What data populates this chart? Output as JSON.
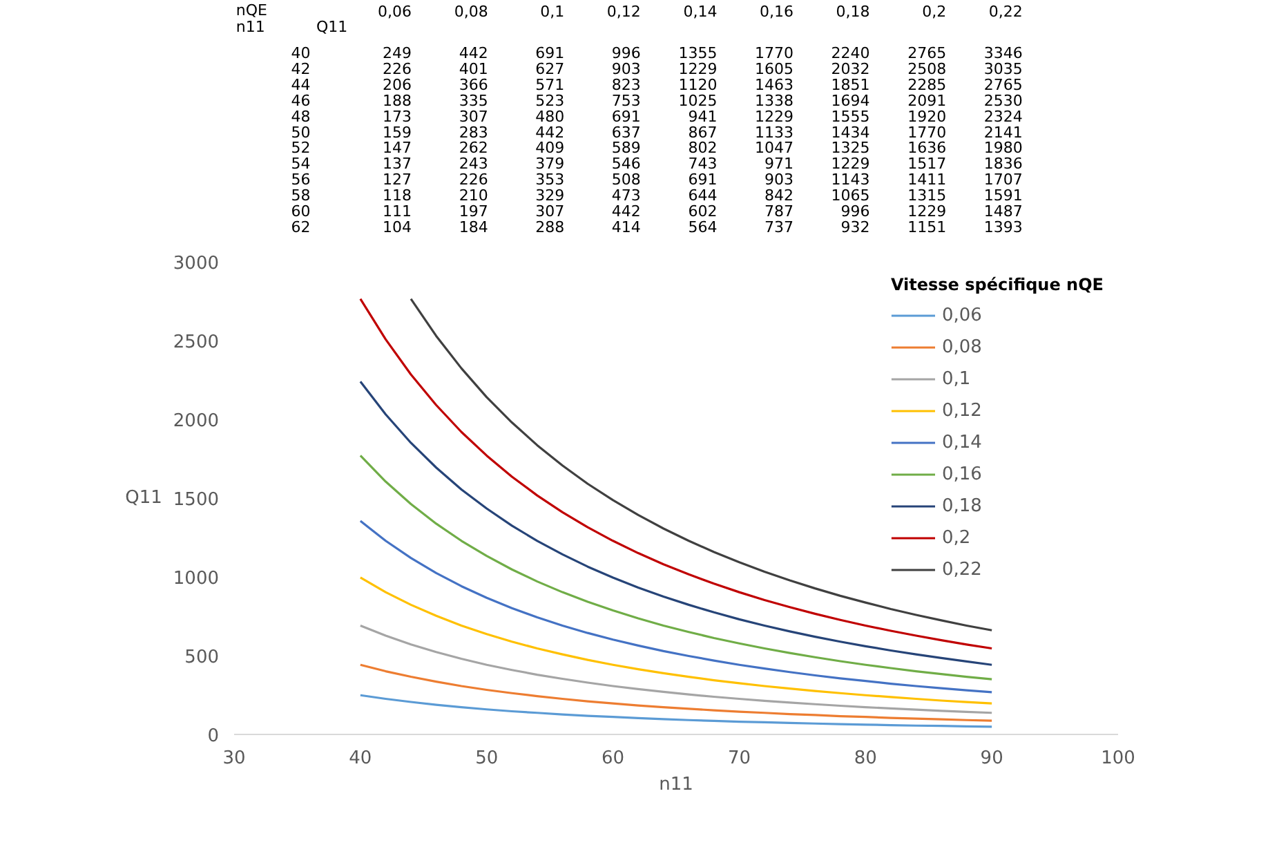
{
  "chart_data": [
    {
      "type": "heatmap",
      "xlabel": "nQE",
      "ylabel": "n11",
      "annotations": [
        "Q11"
      ],
      "categories": [
        "0,06",
        "0,08",
        "0,1",
        "0,12",
        "0,14",
        "0,16",
        "0,18",
        "0,2",
        "0,22"
      ],
      "y_categories": [
        "40",
        "42",
        "44",
        "46",
        "48",
        "50",
        "52",
        "54",
        "56",
        "58",
        "60",
        "62"
      ],
      "data_labels": true,
      "cells": [
        [
          249,
          442,
          691,
          996,
          1355,
          1770,
          2240,
          2765,
          3346
        ],
        [
          226,
          401,
          627,
          903,
          1229,
          1605,
          2032,
          2508,
          3035
        ],
        [
          206,
          366,
          571,
          823,
          1120,
          1463,
          1851,
          2285,
          2765
        ],
        [
          188,
          335,
          523,
          753,
          1025,
          1338,
          1694,
          2091,
          2530
        ],
        [
          173,
          307,
          480,
          691,
          941,
          1229,
          1555,
          1920,
          2324
        ],
        [
          159,
          283,
          442,
          637,
          867,
          1133,
          1434,
          1770,
          2141
        ],
        [
          147,
          262,
          409,
          589,
          802,
          1047,
          1325,
          1636,
          1980
        ],
        [
          137,
          243,
          379,
          546,
          743,
          971,
          1229,
          1517,
          1836
        ],
        [
          127,
          226,
          353,
          508,
          691,
          903,
          1143,
          1411,
          1707
        ],
        [
          118,
          210,
          329,
          473,
          644,
          842,
          1065,
          1315,
          1591
        ],
        [
          111,
          197,
          307,
          442,
          602,
          787,
          996,
          1229,
          1487
        ],
        [
          104,
          184,
          288,
          414,
          564,
          737,
          932,
          1151,
          1393
        ]
      ]
    },
    {
      "type": "line",
      "xlabel": "n11",
      "ylabel": "Q11",
      "legend_title": "Vitesse spécifique nQE",
      "legend": "top right",
      "grid": false,
      "x": [
        40,
        42,
        44,
        46,
        48,
        50,
        52,
        54,
        56,
        58,
        60,
        62,
        64,
        66,
        68,
        70,
        72,
        74,
        76,
        78,
        80,
        82,
        84,
        86,
        88,
        90
      ],
      "xlim": [
        30,
        100
      ],
      "xticks": [
        30,
        40,
        50,
        60,
        70,
        80,
        90,
        100
      ],
      "ylim": [
        0,
        3000
      ],
      "yticks": [
        0,
        500,
        1000,
        1500,
        2000,
        2500,
        3000
      ],
      "series": [
        {
          "name": "0,06",
          "color": "#5b9bd5",
          "values": [
            249,
            226,
            206,
            188,
            173,
            159,
            147,
            137,
            127,
            118,
            111,
            104,
            97,
            91,
            86,
            81,
            77,
            73,
            69,
            65,
            62,
            59,
            56,
            54,
            51,
            49
          ]
        },
        {
          "name": "0,08",
          "color": "#ed7d31",
          "values": [
            442,
            401,
            366,
            335,
            307,
            283,
            262,
            243,
            226,
            210,
            197,
            184,
            173,
            163,
            153,
            144,
            137,
            129,
            123,
            116,
            111,
            105,
            100,
            96,
            91,
            87
          ]
        },
        {
          "name": "0,1",
          "color": "#a5a5a5",
          "values": [
            691,
            627,
            571,
            523,
            480,
            442,
            409,
            379,
            353,
            329,
            307,
            288,
            270,
            254,
            239,
            226,
            213,
            202,
            192,
            182,
            173,
            165,
            157,
            150,
            143,
            137
          ]
        },
        {
          "name": "0,12",
          "color": "#ffc000",
          "values": [
            996,
            903,
            823,
            753,
            691,
            637,
            589,
            546,
            508,
            473,
            442,
            414,
            389,
            366,
            344,
            325,
            307,
            291,
            276,
            262,
            249,
            237,
            226,
            215,
            206,
            197
          ]
        },
        {
          "name": "0,14",
          "color": "#4472c4",
          "values": [
            1355,
            1229,
            1120,
            1025,
            941,
            867,
            802,
            743,
            691,
            644,
            602,
            564,
            529,
            498,
            469,
            442,
            418,
            396,
            375,
            356,
            339,
            322,
            307,
            293,
            280,
            268
          ]
        },
        {
          "name": "0,16",
          "color": "#70ad47",
          "values": [
            1770,
            1605,
            1463,
            1338,
            1229,
            1133,
            1047,
            971,
            903,
            842,
            787,
            737,
            691,
            650,
            612,
            578,
            546,
            517,
            490,
            465,
            442,
            421,
            401,
            383,
            366,
            350
          ]
        },
        {
          "name": "0,18",
          "color": "#264478",
          "values": [
            2240,
            2032,
            1851,
            1694,
            1555,
            1434,
            1325,
            1229,
            1143,
            1065,
            996,
            932,
            875,
            823,
            775,
            731,
            691,
            654,
            620,
            589,
            560,
            533,
            508,
            485,
            463,
            442
          ]
        },
        {
          "name": "0,2",
          "color": "#c00000",
          "values": [
            2765,
            2508,
            2285,
            2091,
            1920,
            1770,
            1636,
            1517,
            1411,
            1315,
            1229,
            1151,
            1080,
            1016,
            957,
            903,
            853,
            808,
            766,
            727,
            691,
            658,
            627,
            598,
            571,
            546
          ]
        },
        {
          "name": "0,22",
          "color": "#404040",
          "values": [
            null,
            null,
            2765,
            2530,
            2324,
            2141,
            1980,
            1836,
            1707,
            1591,
            1487,
            1393,
            1307,
            1229,
            1158,
            1093,
            1033,
            978,
            927,
            880,
            837,
            796,
            759,
            724,
            691,
            661
          ]
        }
      ]
    }
  ]
}
